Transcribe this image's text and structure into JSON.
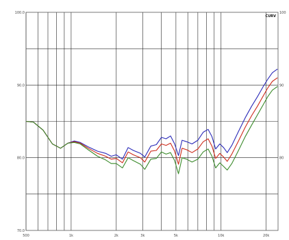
{
  "chart_data": {
    "type": "line",
    "corner_label": "CURV",
    "x_scale": "log",
    "xlim": [
      500,
      24000
    ],
    "ylim": [
      70,
      100
    ],
    "y_ticks_left": [
      "100.0",
      "90.0",
      "80.0",
      "70.0"
    ],
    "y_ticks_right": [
      "100",
      "90",
      "80"
    ],
    "x_ticks": [
      {
        "value": 500,
        "label": "500"
      },
      {
        "value": 1000,
        "label": "1k"
      },
      {
        "value": 2000,
        "label": "2k"
      },
      {
        "value": 3000,
        "label": "3k"
      },
      {
        "value": 5000,
        "label": "5k"
      },
      {
        "value": 10000,
        "label": "10k"
      },
      {
        "value": 20000,
        "label": "20k"
      }
    ],
    "grid_lines_x": [
      500,
      600,
      700,
      800,
      900,
      1000,
      2000,
      3000,
      4000,
      5000,
      6000,
      7000,
      8000,
      9000,
      10000,
      20000
    ],
    "grid": true,
    "legend": "none",
    "series": [
      {
        "color": "#2a2ab8",
        "points": [
          [
            500,
            85.0
          ],
          [
            560,
            84.9
          ],
          [
            650,
            83.8
          ],
          [
            750,
            81.9
          ],
          [
            850,
            81.3
          ],
          [
            950,
            82.0
          ],
          [
            1050,
            82.3
          ],
          [
            1150,
            82.1
          ],
          [
            1300,
            81.5
          ],
          [
            1500,
            80.9
          ],
          [
            1700,
            80.6
          ],
          [
            1850,
            80.2
          ],
          [
            2000,
            80.4
          ],
          [
            2200,
            79.8
          ],
          [
            2400,
            81.4
          ],
          [
            2600,
            81.0
          ],
          [
            2900,
            80.6
          ],
          [
            3100,
            80.1
          ],
          [
            3400,
            81.6
          ],
          [
            3700,
            81.8
          ],
          [
            4000,
            82.8
          ],
          [
            4300,
            82.6
          ],
          [
            4600,
            83.0
          ],
          [
            4900,
            81.9
          ],
          [
            5200,
            80.3
          ],
          [
            5500,
            82.4
          ],
          [
            5900,
            82.2
          ],
          [
            6400,
            81.9
          ],
          [
            7000,
            82.4
          ],
          [
            7600,
            83.5
          ],
          [
            8200,
            83.9
          ],
          [
            8700,
            82.9
          ],
          [
            9200,
            81.2
          ],
          [
            9800,
            81.9
          ],
          [
            10400,
            81.4
          ],
          [
            11000,
            80.7
          ],
          [
            11800,
            81.7
          ],
          [
            13000,
            83.5
          ],
          [
            14500,
            85.5
          ],
          [
            16000,
            87.1
          ],
          [
            17500,
            88.4
          ],
          [
            19000,
            89.7
          ],
          [
            20500,
            90.8
          ],
          [
            22000,
            91.7
          ],
          [
            23800,
            92.2
          ]
        ]
      },
      {
        "color": "#cc2a1a",
        "points": [
          [
            500,
            85.0
          ],
          [
            560,
            84.9
          ],
          [
            650,
            83.8
          ],
          [
            750,
            81.9
          ],
          [
            850,
            81.3
          ],
          [
            950,
            82.0
          ],
          [
            1050,
            82.2
          ],
          [
            1150,
            82.0
          ],
          [
            1300,
            81.3
          ],
          [
            1500,
            80.6
          ],
          [
            1700,
            80.2
          ],
          [
            1850,
            79.8
          ],
          [
            2000,
            79.9
          ],
          [
            2200,
            79.3
          ],
          [
            2400,
            80.8
          ],
          [
            2600,
            80.4
          ],
          [
            2900,
            80.0
          ],
          [
            3100,
            79.4
          ],
          [
            3400,
            80.9
          ],
          [
            3700,
            81.0
          ],
          [
            4000,
            81.9
          ],
          [
            4300,
            81.7
          ],
          [
            4600,
            82.0
          ],
          [
            4900,
            80.9
          ],
          [
            5200,
            79.1
          ],
          [
            5500,
            81.3
          ],
          [
            5900,
            81.1
          ],
          [
            6400,
            80.7
          ],
          [
            7000,
            81.2
          ],
          [
            7600,
            82.2
          ],
          [
            8200,
            82.6
          ],
          [
            8700,
            81.6
          ],
          [
            9200,
            79.9
          ],
          [
            9800,
            80.6
          ],
          [
            10400,
            80.1
          ],
          [
            11000,
            79.5
          ],
          [
            11800,
            80.5
          ],
          [
            13000,
            82.2
          ],
          [
            14500,
            84.2
          ],
          [
            16000,
            85.8
          ],
          [
            17500,
            87.1
          ],
          [
            19000,
            88.4
          ],
          [
            20500,
            89.6
          ],
          [
            22000,
            90.5
          ],
          [
            23800,
            91.0
          ]
        ]
      },
      {
        "color": "#3a8a2a",
        "points": [
          [
            500,
            85.0
          ],
          [
            560,
            84.9
          ],
          [
            650,
            83.8
          ],
          [
            750,
            81.9
          ],
          [
            850,
            81.3
          ],
          [
            950,
            82.0
          ],
          [
            1050,
            82.1
          ],
          [
            1150,
            81.9
          ],
          [
            1300,
            81.1
          ],
          [
            1500,
            80.2
          ],
          [
            1700,
            79.7
          ],
          [
            1850,
            79.2
          ],
          [
            2000,
            79.2
          ],
          [
            2200,
            78.6
          ],
          [
            2400,
            80.0
          ],
          [
            2600,
            79.6
          ],
          [
            2900,
            79.1
          ],
          [
            3100,
            78.4
          ],
          [
            3400,
            79.8
          ],
          [
            3700,
            79.9
          ],
          [
            4000,
            80.8
          ],
          [
            4300,
            80.5
          ],
          [
            4600,
            80.7
          ],
          [
            4900,
            79.6
          ],
          [
            5200,
            77.8
          ],
          [
            5500,
            80.0
          ],
          [
            5900,
            79.8
          ],
          [
            6400,
            79.4
          ],
          [
            7000,
            79.8
          ],
          [
            7600,
            80.8
          ],
          [
            8200,
            81.2
          ],
          [
            8700,
            80.2
          ],
          [
            9200,
            78.6
          ],
          [
            9800,
            79.3
          ],
          [
            10400,
            78.8
          ],
          [
            11000,
            78.3
          ],
          [
            11800,
            79.2
          ],
          [
            13000,
            80.9
          ],
          [
            14500,
            82.9
          ],
          [
            16000,
            84.5
          ],
          [
            17500,
            85.9
          ],
          [
            19000,
            87.2
          ],
          [
            20500,
            88.4
          ],
          [
            22000,
            89.3
          ],
          [
            23800,
            89.8
          ]
        ]
      }
    ]
  }
}
